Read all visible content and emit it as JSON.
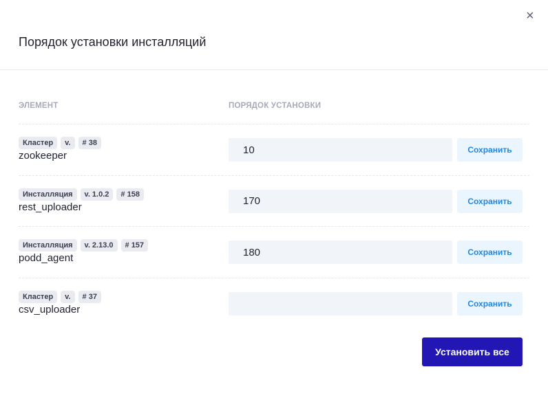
{
  "dialog": {
    "title": "Порядок установки инсталляций",
    "close_icon": "×"
  },
  "columns": {
    "element": "ЭЛЕМЕНТ",
    "order": "ПОРЯДОК УСТАНОВКИ"
  },
  "rows": [
    {
      "type": "Кластер",
      "version": "v.",
      "number": "# 38",
      "name": "zookeeper",
      "order": "10",
      "save_label": "Сохранить"
    },
    {
      "type": "Инсталляция",
      "version": "v. 1.0.2",
      "number": "# 158",
      "name": "rest_uploader",
      "order": "170",
      "save_label": "Сохранить"
    },
    {
      "type": "Инсталляция",
      "version": "v. 2.13.0",
      "number": "# 157",
      "name": "podd_agent",
      "order": "180",
      "save_label": "Сохранить"
    },
    {
      "type": "Кластер",
      "version": "v.",
      "number": "# 37",
      "name": "csv_uploader",
      "order": "",
      "save_label": "Сохранить"
    }
  ],
  "install_all_label": "Установить все",
  "colors": {
    "primary": "#2216b5",
    "save_text": "#1e88e5",
    "save_bg": "#eaf5fe"
  }
}
